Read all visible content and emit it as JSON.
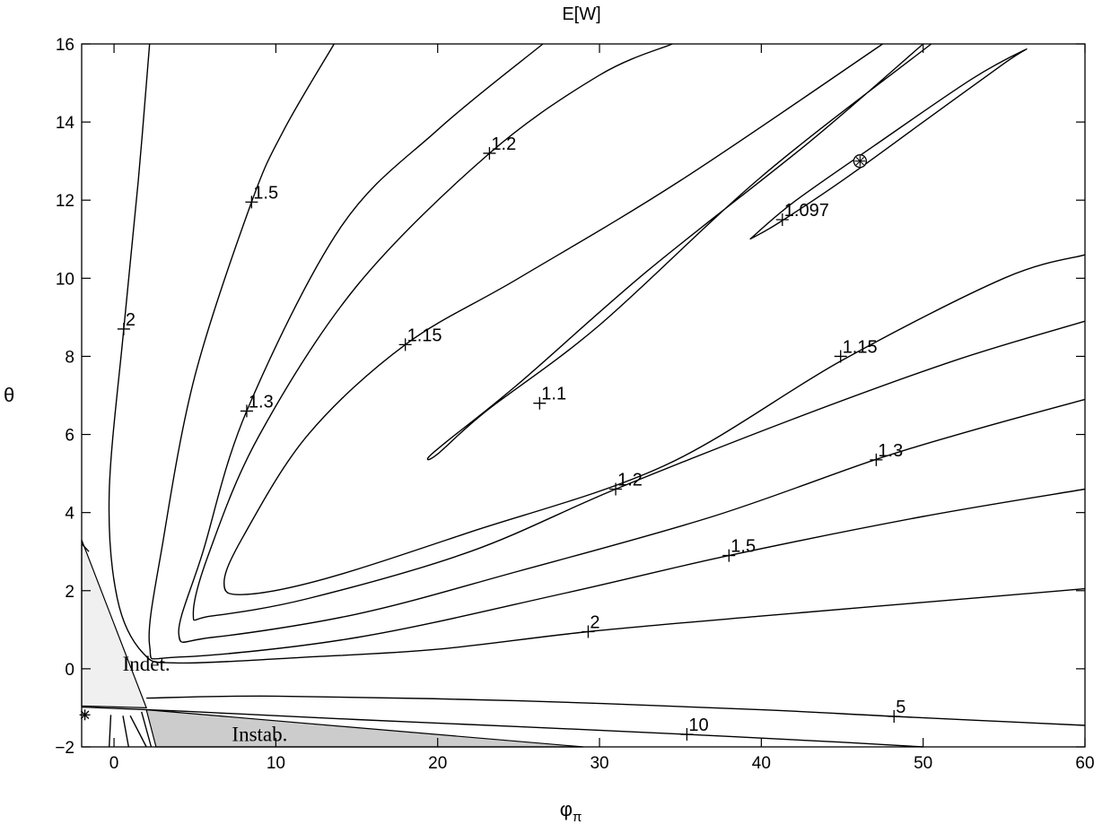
{
  "chart_data": {
    "type": "contour",
    "title": "E[W]",
    "xlabel_base": "φ",
    "xlabel_sub": "π",
    "ylabel": "θ",
    "xlim": [
      -2,
      60
    ],
    "ylim": [
      -2,
      16
    ],
    "xticks": [
      0,
      10,
      20,
      30,
      40,
      50,
      60
    ],
    "yticks": [
      -2,
      0,
      2,
      4,
      6,
      8,
      10,
      12,
      14,
      16
    ],
    "regions": [
      {
        "name": "Indet.",
        "color": "#f0f0f0",
        "polygon": [
          [
            -2,
            3.3
          ],
          [
            -2,
            -0.95
          ],
          [
            2,
            -1.0
          ]
        ],
        "label_at": [
          2,
          -0.05
        ]
      },
      {
        "name": "Instab.",
        "color": "#cccccc",
        "polygon": [
          [
            2.0,
            -1.05
          ],
          [
            29,
            -2
          ],
          [
            2.6,
            -2
          ]
        ],
        "label_at": [
          9,
          -1.85
        ]
      }
    ],
    "markers": [
      {
        "kind": "optimum",
        "x": 46.1,
        "y": 13.0
      },
      {
        "kind": "star",
        "x": -1.8,
        "y": -1.18
      }
    ],
    "contours": [
      {
        "level": "1.097",
        "paths": [
          [
            [
              39.3,
              11.0
            ],
            [
              42,
              11.95
            ],
            [
              47,
              13.4
            ],
            [
              53,
              15.1
            ],
            [
              56.3,
              15.85
            ],
            [
              55,
              15.5
            ],
            [
              50,
              14.0
            ],
            [
              45,
              12.5
            ],
            [
              41,
              11.4
            ],
            [
              39.3,
              11.0
            ]
          ]
        ],
        "labels": [
          {
            "text": "1.097",
            "x": 41.3,
            "y": 11.5
          }
        ]
      },
      {
        "level": "1.1",
        "paths": [
          [
            [
              50.5,
              16
            ],
            [
              40,
              12.6
            ],
            [
              30,
              8.8
            ],
            [
              23,
              6.6
            ],
            [
              20,
              5.5
            ],
            [
              19.4,
              5.4
            ],
            [
              20.5,
              5.8
            ],
            [
              25,
              7.3
            ],
            [
              33,
              10.2
            ],
            [
              43,
              13.5
            ],
            [
              50,
              16
            ]
          ]
        ],
        "labels": [
          {
            "text": "1.1",
            "x": 26.3,
            "y": 6.8
          }
        ]
      },
      {
        "level": "1.15",
        "paths": [
          [
            [
              47.5,
              16
            ],
            [
              35,
              12.5
            ],
            [
              25,
              10
            ],
            [
              18,
              8.3
            ],
            [
              12,
              6.0
            ],
            [
              8,
              3.4
            ],
            [
              6.8,
              2.2
            ],
            [
              8,
              1.9
            ],
            [
              13,
              2.3
            ],
            [
              22,
              3.5
            ],
            [
              34,
              5.2
            ],
            [
              45,
              7.9
            ],
            [
              55,
              10.0
            ],
            [
              60,
              10.6
            ]
          ]
        ],
        "labels": [
          {
            "text": "1.15",
            "x": 18.0,
            "y": 8.3
          },
          {
            "text": "1.15",
            "x": 44.9,
            "y": 8.0
          }
        ]
      },
      {
        "level": "1.2",
        "paths": [
          [
            [
              34.5,
              16
            ],
            [
              30,
              15.2
            ],
            [
              23.2,
              13.2
            ],
            [
              15,
              9.8
            ],
            [
              9,
              6
            ],
            [
              5.9,
              3
            ],
            [
              4.9,
              1.4
            ],
            [
              6,
              1.35
            ],
            [
              12,
              1.8
            ],
            [
              22,
              3.0
            ],
            [
              31,
              4.6
            ],
            [
              42,
              6.4
            ],
            [
              52,
              7.9
            ],
            [
              60,
              8.9
            ]
          ]
        ],
        "labels": [
          {
            "text": "1.2",
            "x": 23.2,
            "y": 13.2
          },
          {
            "text": "1.2",
            "x": 31.0,
            "y": 4.6
          }
        ]
      },
      {
        "level": "1.3",
        "paths": [
          [
            [
              26.5,
              16
            ],
            [
              20,
              13.8
            ],
            [
              14,
              11.3
            ],
            [
              8.2,
              6.6
            ],
            [
              5.5,
              3
            ],
            [
              4.0,
              0.9
            ],
            [
              6,
              0.8
            ],
            [
              15,
              1.4
            ],
            [
              25,
              2.5
            ],
            [
              37,
              3.9
            ],
            [
              47,
              5.35
            ],
            [
              53,
              6.1
            ],
            [
              60,
              6.9
            ]
          ]
        ],
        "labels": [
          {
            "text": "1.3",
            "x": 8.2,
            "y": 6.6
          },
          {
            "text": "1.3",
            "x": 47.1,
            "y": 5.35
          }
        ]
      },
      {
        "level": "1.5",
        "paths": [
          [
            [
              13.6,
              16
            ],
            [
              10.5,
              13.8
            ],
            [
              8.5,
              11.95
            ],
            [
              5,
              7.5
            ],
            [
              3,
              3.2
            ],
            [
              2.2,
              0.6
            ],
            [
              4,
              0.3
            ],
            [
              15,
              0.8
            ],
            [
              28,
              1.95
            ],
            [
              38,
              2.9
            ],
            [
              50,
              3.9
            ],
            [
              60,
              4.6
            ]
          ]
        ],
        "labels": [
          {
            "text": "1.5",
            "x": 8.5,
            "y": 11.95
          },
          {
            "text": "1.5",
            "x": 38.0,
            "y": 2.9
          }
        ]
      },
      {
        "level": "2",
        "paths": [
          [
            [
              2.2,
              16
            ],
            [
              1.5,
              12.5
            ],
            [
              0.6,
              8.7
            ],
            [
              -0.3,
              4.5
            ],
            [
              0.2,
              1.8
            ],
            [
              1.8,
              0.4
            ],
            [
              4,
              0.15
            ],
            [
              12,
              0.3
            ],
            [
              20,
              0.5
            ],
            [
              29.3,
              0.95
            ],
            [
              40,
              1.35
            ],
            [
              50,
              1.7
            ],
            [
              60,
              2.05
            ]
          ]
        ],
        "labels": [
          {
            "text": "2",
            "x": 29.3,
            "y": 0.95
          },
          {
            "text": "2",
            "x": 0.6,
            "y": 8.7
          }
        ]
      },
      {
        "level": "5",
        "paths": [
          [
            [
              2.0,
              -0.75
            ],
            [
              10,
              -0.7
            ],
            [
              25,
              -0.82
            ],
            [
              40,
              -1.05
            ],
            [
              48.2,
              -1.22
            ],
            [
              60,
              -1.45
            ]
          ]
        ],
        "labels": [
          {
            "text": "5",
            "x": 48.2,
            "y": -1.22
          }
        ]
      },
      {
        "level": "10",
        "paths": [
          [
            [
              -2,
              -0.98
            ],
            [
              5,
              -1.1
            ],
            [
              15,
              -1.3
            ],
            [
              25,
              -1.48
            ],
            [
              35.4,
              -1.68
            ],
            [
              45,
              -1.88
            ],
            [
              50,
              -2
            ]
          ]
        ],
        "labels": [
          {
            "text": "10",
            "x": 35.4,
            "y": -1.68
          }
        ]
      },
      {
        "level": "",
        "paths": [
          [
            [
              -2.0,
              3.2
            ],
            [
              -1.55,
              3.0
            ]
          ],
          [
            [
              -0.2,
              -1.18
            ],
            [
              -0.3,
              -2
            ]
          ],
          [
            [
              0.55,
              -1.2
            ],
            [
              0.9,
              -2
            ]
          ],
          [
            [
              1.0,
              -1.2
            ],
            [
              2.0,
              -2
            ]
          ],
          [
            [
              1.7,
              -1.1
            ],
            [
              2.3,
              -2
            ]
          ]
        ],
        "labels": []
      }
    ]
  }
}
